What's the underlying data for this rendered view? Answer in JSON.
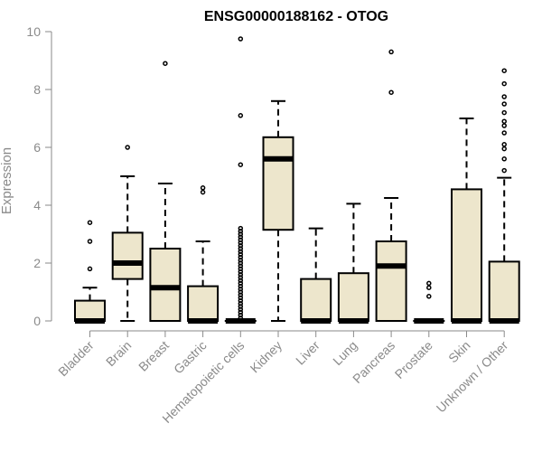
{
  "chart_data": {
    "type": "boxplot",
    "title": "ENSG00000188162 - OTOG",
    "ylabel": "Expression",
    "xlabel": "",
    "ylim": [
      0,
      10
    ],
    "yticks": [
      0,
      2,
      4,
      6,
      8,
      10
    ],
    "grid": false,
    "colors": {
      "box_fill": "#ede6cc",
      "box_stroke": "#000000",
      "axis": "#8a8a8a",
      "text": "#8a8a8a",
      "title": "#000000"
    },
    "categories": [
      "Bladder",
      "Brain",
      "Breast",
      "Gastric",
      "Hematopoietic cells",
      "Kidney",
      "Liver",
      "Lung",
      "Pancreas",
      "Prostate",
      "Skin",
      "Unknown / Other"
    ],
    "boxes": [
      {
        "category": "Bladder",
        "whisker_low": 0,
        "q1": 0,
        "median": 0,
        "q3": 0.7,
        "whisker_high": 1.15,
        "outliers": [
          1.8,
          2.75,
          3.4
        ]
      },
      {
        "category": "Brain",
        "whisker_low": 0,
        "q1": 1.45,
        "median": 2.0,
        "q3": 3.05,
        "whisker_high": 5.0,
        "outliers": [
          6.0
        ]
      },
      {
        "category": "Breast",
        "whisker_low": 0,
        "q1": 0,
        "median": 1.15,
        "q3": 2.5,
        "whisker_high": 4.75,
        "outliers": [
          8.9
        ]
      },
      {
        "category": "Gastric",
        "whisker_low": 0,
        "q1": 0,
        "median": 0,
        "q3": 1.2,
        "whisker_high": 2.75,
        "outliers": [
          4.45,
          4.6
        ]
      },
      {
        "category": "Hematopoietic cells",
        "whisker_low": 0,
        "q1": 0,
        "median": 0,
        "q3": 0,
        "whisker_high": 0,
        "outliers": [
          0.1,
          0.2,
          0.3,
          0.4,
          0.5,
          0.6,
          0.7,
          0.8,
          0.9,
          1.0,
          1.1,
          1.2,
          1.3,
          1.4,
          1.5,
          1.6,
          1.7,
          1.8,
          1.9,
          2.0,
          2.1,
          2.2,
          2.3,
          2.4,
          2.5,
          2.6,
          2.7,
          2.8,
          2.9,
          3.0,
          3.1,
          3.2,
          5.4,
          7.1,
          9.75
        ]
      },
      {
        "category": "Kidney",
        "whisker_low": 0,
        "q1": 3.15,
        "median": 5.6,
        "q3": 6.35,
        "whisker_high": 7.6,
        "outliers": []
      },
      {
        "category": "Liver",
        "whisker_low": 0,
        "q1": 0,
        "median": 0,
        "q3": 1.45,
        "whisker_high": 3.2,
        "outliers": []
      },
      {
        "category": "Lung",
        "whisker_low": 0,
        "q1": 0,
        "median": 0,
        "q3": 1.65,
        "whisker_high": 4.05,
        "outliers": []
      },
      {
        "category": "Pancreas",
        "whisker_low": 0,
        "q1": 0,
        "median": 1.9,
        "q3": 2.75,
        "whisker_high": 4.25,
        "outliers": [
          7.9,
          9.3
        ]
      },
      {
        "category": "Prostate",
        "whisker_low": 0,
        "q1": 0,
        "median": 0,
        "q3": 0,
        "whisker_high": 0,
        "outliers": [
          0.85,
          1.15,
          1.3
        ]
      },
      {
        "category": "Skin",
        "whisker_low": 0,
        "q1": 0,
        "median": 0,
        "q3": 4.55,
        "whisker_high": 7.0,
        "outliers": []
      },
      {
        "category": "Unknown / Other",
        "whisker_low": 0,
        "q1": 0,
        "median": 0,
        "q3": 2.05,
        "whisker_high": 4.95,
        "outliers": [
          5.2,
          5.6,
          5.95,
          6.1,
          6.5,
          6.75,
          6.9,
          7.2,
          7.5,
          7.75,
          8.2,
          8.65
        ]
      }
    ]
  }
}
